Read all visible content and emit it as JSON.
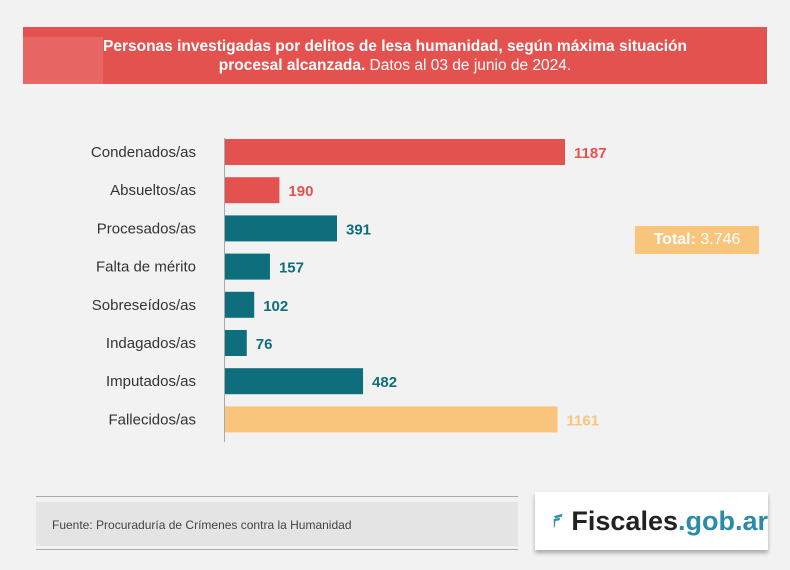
{
  "title": {
    "bold": "Personas investigadas por delitos de lesa humanidad, según máxima situación",
    "bold2": "procesal alcanzada.",
    "normal": " Datos al 03 de junio de 2024."
  },
  "total": {
    "label": "Total:",
    "value": " 3.746"
  },
  "source": "Fuente: Procuraduría de Crímenes contra la Humanidad",
  "logo": {
    "part1": "Fiscales",
    "part2": ".gob.ar"
  },
  "colors": {
    "red": "#e4524f",
    "teal": "#0e6e7c",
    "peach": "#f9c47c"
  },
  "chart_data": {
    "type": "bar",
    "orientation": "horizontal",
    "title": "",
    "categories": [
      "Condenados/as",
      "Absueltos/as",
      "Procesados/as",
      "Falta de mérito",
      "Sobreseídos/as",
      "Indagados/as",
      "Imputados/as",
      "Fallecidos/as"
    ],
    "values": [
      1187,
      190,
      391,
      157,
      102,
      76,
      482,
      1161
    ],
    "bar_colors": [
      "#e4524f",
      "#e4524f",
      "#0e6e7c",
      "#0e6e7c",
      "#0e6e7c",
      "#0e6e7c",
      "#0e6e7c",
      "#f9c47c"
    ],
    "xlim": [
      0,
      1187
    ],
    "grid": false
  }
}
